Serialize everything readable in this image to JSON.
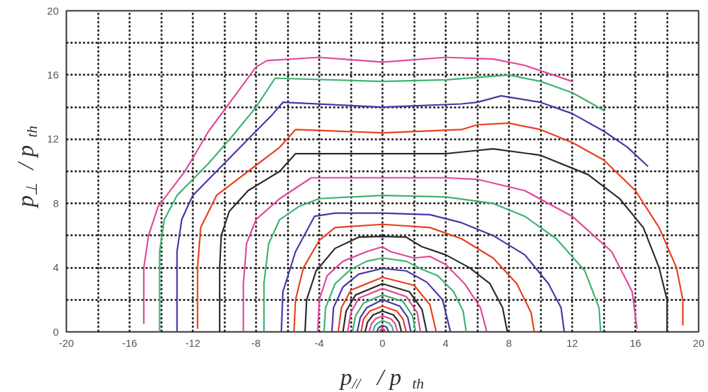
{
  "chart_data": {
    "type": "line",
    "xlabel": "p$_{//}$ / p$_{th}$",
    "ylabel": "p$_{⊥}$ / p$_{th}$",
    "xlim": [
      -20,
      20
    ],
    "ylim": [
      0,
      20
    ],
    "xticks": [
      -20,
      {
        "value": -18,
        "label": null
      },
      -16,
      {
        "value": -14,
        "label": null
      },
      -12,
      {
        "value": -10,
        "label": null
      },
      -8,
      {
        "value": -6,
        "label": null
      },
      -4,
      {
        "value": -2,
        "label": null
      },
      0,
      {
        "value": 2,
        "label": null
      },
      4,
      {
        "value": 6,
        "label": null
      },
      8,
      {
        "value": 10,
        "label": null
      },
      12,
      {
        "value": 14,
        "label": null
      },
      16,
      {
        "value": 18,
        "label": null
      },
      20
    ],
    "yticks": [
      0,
      {
        "value": 2,
        "label": null
      },
      4,
      {
        "value": 6,
        "label": null
      },
      8,
      {
        "value": 10,
        "label": null
      },
      12,
      {
        "value": 14,
        "label": null
      },
      16,
      {
        "value": 18,
        "label": null
      },
      20
    ],
    "grid": true,
    "marker": "none",
    "line_style": "solid",
    "series": [
      {
        "color": "#e0489a",
        "x": [
          -15.1,
          -15.1,
          -14.8,
          -14.2,
          -12.5,
          -11,
          -9.5,
          -8,
          -7.3,
          -4,
          0,
          4,
          7,
          9,
          12
        ],
        "values": [
          0.5,
          4,
          6,
          7.8,
          10,
          12.5,
          14.5,
          16.5,
          16.9,
          17.1,
          16.8,
          17.1,
          17.0,
          16.6,
          15.6
        ]
      },
      {
        "color": "#3cb371",
        "x": [
          -14.1,
          -14.1,
          -13.8,
          -13,
          -11,
          -9.5,
          -8,
          -6.8,
          0,
          4,
          8,
          10,
          12,
          14
        ],
        "values": [
          0,
          5,
          7,
          8.5,
          10.5,
          12.2,
          14,
          15.8,
          15.6,
          15.7,
          16.0,
          15.6,
          14.9,
          13.8
        ]
      },
      {
        "color": "#4a35a6",
        "x": [
          -13,
          -13,
          -12.7,
          -12,
          -10.5,
          -8.5,
          -7,
          -6.3,
          0,
          5,
          6,
          7.5,
          10,
          12,
          14,
          15.5,
          16.8
        ],
        "values": [
          0,
          5,
          7,
          8.5,
          10,
          12,
          13.5,
          14.3,
          14.0,
          14.2,
          14.3,
          14.7,
          14.3,
          13.6,
          12.5,
          11.5,
          10.3
        ]
      },
      {
        "color": "#e8401c",
        "x": [
          -11.7,
          -11.7,
          -11.5,
          -10.5,
          -8.5,
          -6.5,
          -5.5,
          0,
          5,
          6,
          8,
          10,
          12,
          14,
          16,
          17.5,
          18.6,
          19,
          19
        ],
        "values": [
          0.2,
          4,
          6.5,
          8.5,
          10,
          11.5,
          12.6,
          12.4,
          12.6,
          12.9,
          13.0,
          12.6,
          11.8,
          10.7,
          8.8,
          6.5,
          4,
          2,
          0.4
        ]
      },
      {
        "color": "#2a2a2a",
        "x": [
          -10.3,
          -10.3,
          -10.2,
          -9.7,
          -8.5,
          -6.5,
          -5.5,
          0,
          4,
          5,
          7,
          10,
          13,
          15,
          16.5,
          17.5,
          18,
          18
        ],
        "values": [
          0,
          4,
          6,
          7.5,
          8.8,
          10,
          11.1,
          11.1,
          11.1,
          11.2,
          11.4,
          11,
          9.8,
          8.3,
          6.5,
          4,
          2,
          0
        ]
      },
      {
        "color": "#e0489a",
        "x": [
          -8.8,
          -8.8,
          -8.6,
          -8,
          -6.5,
          -4.5,
          0,
          4,
          6,
          9,
          12,
          14.5,
          15.8,
          16.1
        ],
        "values": [
          0,
          3,
          5.5,
          7,
          8.3,
          9.6,
          9.6,
          9.6,
          9.5,
          8.8,
          7.2,
          5,
          2.5,
          0.2
        ]
      },
      {
        "color": "#3cb371",
        "x": [
          -7.5,
          -7.5,
          -7.2,
          -6.5,
          -5.3,
          -4,
          0,
          4,
          7,
          9,
          11,
          12.8,
          13.7,
          13.8
        ],
        "values": [
          0,
          3,
          5.5,
          7,
          7.8,
          8.3,
          8.5,
          8.4,
          8.0,
          7.2,
          5.8,
          3.8,
          1.5,
          0
        ]
      },
      {
        "color": "#4a35a6",
        "x": [
          -6.4,
          -6.3,
          -5.5,
          -4.3,
          -3,
          0,
          3,
          5,
          7,
          9,
          10.5,
          11.3,
          11.5
        ],
        "values": [
          0,
          2.5,
          5,
          7.2,
          7.4,
          7.4,
          7.3,
          6.8,
          6,
          4.8,
          3,
          1.5,
          0
        ]
      },
      {
        "color": "#e8401c",
        "x": [
          -5.6,
          -5.5,
          -5,
          -4,
          -3,
          0,
          3,
          5,
          7,
          8.5,
          9.4,
          9.6
        ],
        "values": [
          0,
          2,
          4,
          5.7,
          6.5,
          6.7,
          6.5,
          5.8,
          4.6,
          3,
          1.2,
          0
        ]
      },
      {
        "color": "#2a2a2a",
        "x": [
          -4.9,
          -4.8,
          -4.2,
          -3,
          -1.5,
          0,
          1.5,
          2.5,
          4,
          5.5,
          6.8,
          7.6,
          7.9
        ],
        "values": [
          0,
          2,
          3.8,
          5.2,
          5.9,
          5.95,
          5.9,
          5.3,
          4.8,
          4,
          3,
          1.5,
          0
        ]
      },
      {
        "color": "#e0489a",
        "x": [
          -4.1,
          -4,
          -3.5,
          -2.5,
          -1,
          0,
          0.5,
          2,
          3,
          4,
          5.2,
          6.2,
          6.6
        ],
        "values": [
          0,
          2,
          3.5,
          4.4,
          5,
          5.3,
          5.0,
          4.6,
          4.7,
          4.2,
          3,
          1.5,
          0
        ]
      },
      {
        "color": "#3cb371",
        "x": [
          -3.7,
          -3.6,
          -3,
          -2,
          -1,
          0,
          1.5,
          2.5,
          3.5,
          4.5,
          5.1,
          5.3
        ],
        "values": [
          0,
          1.5,
          3,
          3.9,
          4.4,
          4.6,
          4.4,
          3.9,
          3.5,
          2.5,
          1.3,
          0
        ]
      },
      {
        "color": "#4a35a6",
        "x": [
          -3.2,
          -3.1,
          -2.5,
          -1.5,
          0,
          1.5,
          2.8,
          3.8,
          4.3
        ],
        "values": [
          0,
          1.5,
          2.8,
          3.6,
          3.95,
          3.8,
          3.1,
          2,
          0
        ]
      },
      {
        "color": "#e8401c",
        "x": [
          -2.8,
          -2.6,
          -2,
          0,
          2,
          3,
          3.4
        ],
        "values": [
          0,
          1.5,
          2.6,
          3.4,
          2.9,
          1.7,
          0
        ]
      },
      {
        "color": "#2a2a2a",
        "x": [
          -2.5,
          -2.3,
          -1.7,
          0,
          1.7,
          2.5,
          2.8
        ],
        "values": [
          0,
          1.3,
          2.3,
          3.0,
          2.5,
          1.4,
          0
        ]
      },
      {
        "color": "#e0489a",
        "x": [
          -2.2,
          -2,
          -1.5,
          0,
          1.5,
          2.2,
          2.4
        ],
        "values": [
          0,
          1.2,
          2.1,
          2.7,
          2.2,
          1.2,
          0
        ]
      },
      {
        "color": "#3cb371",
        "x": [
          -1.9,
          -1.7,
          -1.2,
          0,
          1.3,
          1.9,
          2.1
        ],
        "values": [
          0,
          1,
          1.8,
          2.3,
          1.9,
          1,
          0
        ]
      },
      {
        "color": "#4a35a6",
        "x": [
          -1.6,
          -1.4,
          -1,
          0,
          1.1,
          1.6,
          1.8
        ],
        "values": [
          0,
          0.9,
          1.5,
          2,
          1.6,
          0.9,
          0
        ]
      },
      {
        "color": "#e8401c",
        "x": [
          -1.35,
          -1.2,
          -0.8,
          0,
          0.9,
          1.3,
          1.5
        ],
        "values": [
          0,
          0.8,
          1.3,
          1.6,
          1.3,
          0.8,
          0
        ]
      },
      {
        "color": "#2a2a2a",
        "x": [
          -1.1,
          -0.95,
          -0.6,
          0,
          0.7,
          1.05,
          1.2
        ],
        "values": [
          0,
          0.6,
          1.05,
          1.3,
          1.05,
          0.6,
          0
        ]
      },
      {
        "color": "#e0489a",
        "x": [
          -0.85,
          -0.7,
          -0.45,
          0,
          0.55,
          0.8,
          0.95
        ],
        "values": [
          0,
          0.5,
          0.8,
          1,
          0.8,
          0.5,
          0
        ]
      },
      {
        "color": "#3cb371",
        "x": [
          -0.6,
          -0.5,
          -0.3,
          0,
          0.4,
          0.6,
          0.7
        ],
        "values": [
          0,
          0.35,
          0.55,
          0.7,
          0.55,
          0.35,
          0
        ]
      },
      {
        "color": "#4a35a6",
        "x": [
          -0.35,
          -0.25,
          0,
          0.25,
          0.4
        ],
        "values": [
          0,
          0.25,
          0.4,
          0.3,
          0
        ]
      },
      {
        "color": "#e8401c",
        "x": [
          -0.2,
          -0.1,
          0,
          0.1,
          0.2
        ],
        "values": [
          0,
          0.15,
          0.2,
          0.15,
          0
        ]
      }
    ]
  }
}
